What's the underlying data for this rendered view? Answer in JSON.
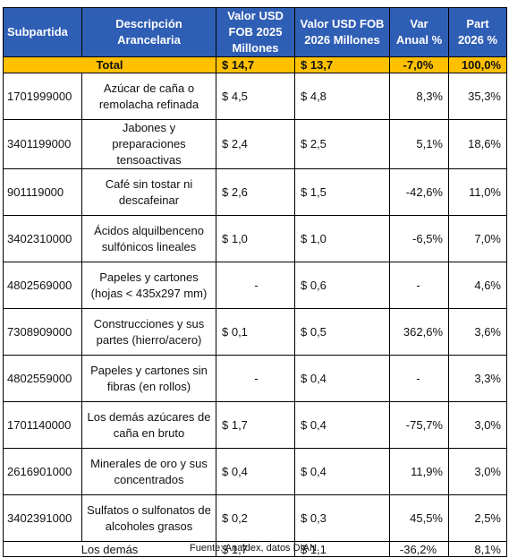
{
  "headers": [
    "Subpartida",
    "Descripción Arancelaria",
    "Valor USD FOB 2025 Millones",
    "Valor USD FOB 2026 Millones",
    "Var Anual %",
    "Part 2026 %"
  ],
  "total": {
    "label": "Total",
    "v2025": "$ 14,7",
    "v2026": "$ 13,7",
    "var": "-7,0%",
    "part": "100,0%"
  },
  "rows": [
    {
      "code": "1701999000",
      "desc": "Azúcar de caña o remolacha refinada",
      "v2025": "$ 4,5",
      "v2026": "$ 4,8",
      "var": "8,3%",
      "part": "35,3%"
    },
    {
      "code": "3401199000",
      "desc": "Jabones y preparaciones tensoactivas",
      "v2025": "$ 2,4",
      "v2026": "$ 2,5",
      "var": "5,1%",
      "part": "18,6%"
    },
    {
      "code": "901119000",
      "desc": "Café sin tostar ni descafeinar",
      "v2025": "$ 2,6",
      "v2026": "$ 1,5",
      "var": "-42,6%",
      "part": "11,0%"
    },
    {
      "code": "3402310000",
      "desc": "Ácidos alquilbenceno sulfónicos lineales",
      "v2025": "$ 1,0",
      "v2026": "$ 1,0",
      "var": "-6,5%",
      "part": "7,0%"
    },
    {
      "code": "4802569000",
      "desc": "Papeles y cartones (hojas < 435x297 mm)",
      "v2025": "-",
      "v2026": "$ 0,6",
      "var": "-",
      "part": "4,6%"
    },
    {
      "code": "7308909000",
      "desc": "Construcciones y sus partes (hierro/acero)",
      "v2025": "$ 0,1",
      "v2026": "$ 0,5",
      "var": "362,6%",
      "part": "3,6%"
    },
    {
      "code": "4802559000",
      "desc": "Papeles y cartones sin fibras (en rollos)",
      "v2025": "-",
      "v2026": "$ 0,4",
      "var": "-",
      "part": "3,3%"
    },
    {
      "code": "1701140000",
      "desc": "Los demás azúcares de caña en bruto",
      "v2025": "$ 1,7",
      "v2026": "$ 0,4",
      "var": "-75,7%",
      "part": "3,0%"
    },
    {
      "code": "2616901000",
      "desc": "Minerales de oro y sus concentrados",
      "v2025": "$ 0,4",
      "v2026": "$ 0,4",
      "var": "11,9%",
      "part": "3,0%"
    },
    {
      "code": "3402391000",
      "desc": "Sulfatos o sulfonatos de alcoholes grasos",
      "v2025": "$ 0,2",
      "v2026": "$ 0,3",
      "var": "45,5%",
      "part": "2,5%"
    }
  ],
  "others": {
    "label": "Los demás",
    "v2025": "$ 1,7",
    "v2026": "$ 1,1",
    "var": "-36,2%",
    "part": "8,1%"
  },
  "source": "Fuente: Analdex, datos DIAN.",
  "colors": {
    "header_bg": "#2f5eb5",
    "total_bg": "#ffc000"
  }
}
